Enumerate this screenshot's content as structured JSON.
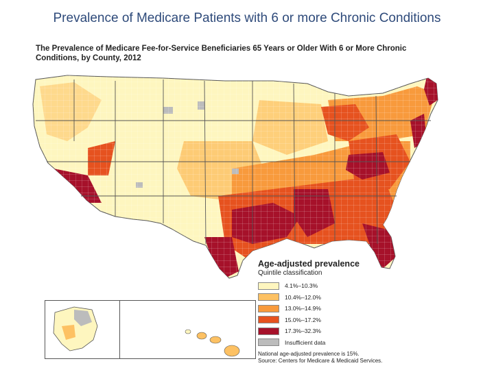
{
  "slide": {
    "title": "Prevalence of Medicare Patients with 6 or more Chronic Conditions"
  },
  "map": {
    "title_line1": "The Prevalence of Medicare Fee-for-Service Beneficiaries 65 Years or Older With 6 or More Chronic",
    "title_line2": "Conditions, by County, 2012"
  },
  "legend": {
    "title": "Age-adjusted prevalence",
    "subtitle": "Quintile classification",
    "classes": [
      {
        "label": "4.1%–10.3%",
        "color": "#fef6bf"
      },
      {
        "label": "10.4%–12.0%",
        "color": "#fdc163"
      },
      {
        "label": "13.0%–14.9%",
        "color": "#f89a3c"
      },
      {
        "label": "15.0%–17.2%",
        "color": "#e6521f"
      },
      {
        "label": "17.3%–32.3%",
        "color": "#a6112a"
      },
      {
        "label": "Insufficient data",
        "color": "#bcbcbc"
      }
    ],
    "national_note": "National age-adjusted prevalence is 15%.",
    "source": "Source: Centers for Medicare & Medicaid Services."
  }
}
